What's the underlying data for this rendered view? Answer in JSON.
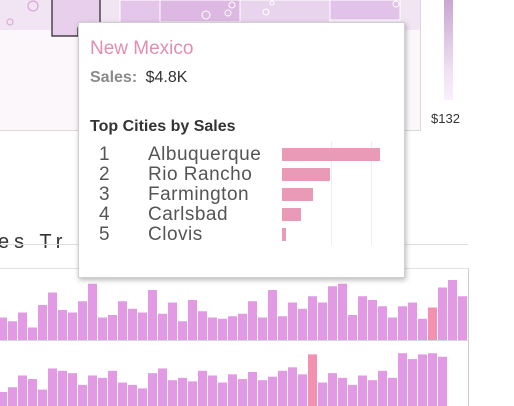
{
  "legend": {
    "max_value": "$132",
    "color_light": "#f8f0fa",
    "color_dark": "#c9a6d1"
  },
  "section": {
    "title": "es Tr"
  },
  "tooltip": {
    "state": "New Mexico",
    "sales_label": "Sales:",
    "sales_value": "$4.8K",
    "subtitle": "Top Cities by Sales",
    "accent_color": "#e08fb0",
    "cities": [
      {
        "rank": "1",
        "name": "Albuquerque",
        "value": 100
      },
      {
        "rank": "2",
        "name": "Rio Rancho",
        "value": 49
      },
      {
        "rank": "3",
        "name": "Farmington",
        "value": 32
      },
      {
        "rank": "4",
        "name": "Carlsbad",
        "value": 19
      },
      {
        "rank": "5",
        "name": "Clovis",
        "value": 4
      }
    ]
  },
  "chart_data": [
    {
      "type": "bar",
      "values": [
        18,
        15,
        22,
        10,
        28,
        38,
        24,
        22,
        31,
        45,
        18,
        20,
        31,
        25,
        22,
        40,
        21,
        30,
        15,
        32,
        23,
        18,
        17,
        19,
        21,
        31,
        18,
        40,
        19,
        30,
        25,
        35,
        30,
        43,
        45,
        20,
        35,
        32,
        27,
        18,
        27,
        30,
        17,
        26,
        42,
        48,
        35
      ],
      "highlight_index": 43,
      "color": "#e19ae3",
      "highlight_color": "#f490b0"
    },
    {
      "type": "bar",
      "values": [
        12,
        16,
        26,
        23,
        14,
        32,
        30,
        28,
        18,
        26,
        24,
        30,
        20,
        18,
        15,
        28,
        32,
        22,
        24,
        21,
        30,
        26,
        20,
        27,
        23,
        29,
        22,
        25,
        30,
        33,
        27,
        44,
        20,
        28,
        24,
        18,
        26,
        22,
        30,
        24,
        45,
        40,
        44,
        45,
        42
      ],
      "highlight_index": 31,
      "color": "#e19ae3",
      "highlight_color": "#f490b0"
    }
  ]
}
